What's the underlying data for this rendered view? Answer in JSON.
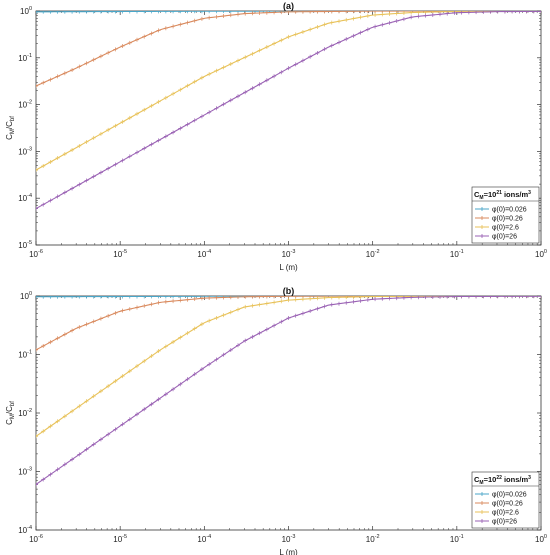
{
  "chart_data": [
    {
      "type": "line",
      "title": "(a)",
      "xlabel": "L (m)",
      "ylabel": "C_M/C_bf",
      "xscale": "log",
      "yscale": "log",
      "xlim": [
        1e-06,
        1
      ],
      "ylim": [
        1e-05,
        1
      ],
      "x_ticks": [
        1e-06,
        1e-05,
        0.0001,
        0.001,
        0.01,
        0.1,
        1
      ],
      "y_ticks": [
        1e-05,
        0.0001,
        0.001,
        0.01,
        0.1,
        1
      ],
      "grid": false,
      "legend_placement": "bottom-right",
      "legend_title": {
        "base": "C",
        "sub": "M",
        "mid": "=10",
        "sup": "21",
        "tail": " ions/m",
        "sup2": "3"
      },
      "series": [
        {
          "name": "φ(0)=0.026",
          "color": "#4aa6c8",
          "marker": "+",
          "points": [
            [
              1e-06,
              0.96
            ],
            [
              0.0001,
              0.99
            ],
            [
              0.01,
              1.0
            ],
            [
              1,
              1.0
            ]
          ]
        },
        {
          "name": "φ(0)=0.26",
          "color": "#d98a5e",
          "marker": "+",
          "points": [
            [
              1e-06,
              0.025
            ],
            [
              3e-06,
              0.06
            ],
            [
              1e-05,
              0.17
            ],
            [
              3e-05,
              0.4
            ],
            [
              0.0001,
              0.7
            ],
            [
              0.0003,
              0.88
            ],
            [
              0.001,
              0.96
            ],
            [
              0.01,
              0.995
            ],
            [
              0.1,
              1.0
            ],
            [
              1,
              1.0
            ]
          ]
        },
        {
          "name": "φ(0)=2.6",
          "color": "#e8c25a",
          "marker": "+",
          "points": [
            [
              1e-06,
              0.0004
            ],
            [
              1e-05,
              0.004
            ],
            [
              0.0001,
              0.04
            ],
            [
              0.001,
              0.28
            ],
            [
              0.003,
              0.55
            ],
            [
              0.01,
              0.82
            ],
            [
              0.03,
              0.93
            ],
            [
              0.1,
              0.98
            ],
            [
              1,
              1.0
            ]
          ]
        },
        {
          "name": "φ(0)=26",
          "color": "#9a62b4",
          "marker": "+",
          "points": [
            [
              1e-06,
              6e-05
            ],
            [
              1e-05,
              0.0006
            ],
            [
              0.0001,
              0.006
            ],
            [
              0.001,
              0.06
            ],
            [
              0.003,
              0.17
            ],
            [
              0.01,
              0.45
            ],
            [
              0.03,
              0.75
            ],
            [
              0.1,
              0.92
            ],
            [
              0.3,
              0.97
            ],
            [
              1,
              0.98
            ]
          ]
        }
      ]
    },
    {
      "type": "line",
      "title": "(b)",
      "xlabel": "L (m)",
      "ylabel": "C_M/C_bf",
      "xscale": "log",
      "yscale": "log",
      "xlim": [
        1e-06,
        1
      ],
      "ylim": [
        0.0001,
        1
      ],
      "x_ticks": [
        1e-06,
        1e-05,
        0.0001,
        0.001,
        0.01,
        0.1,
        1
      ],
      "y_ticks": [
        0.0001,
        0.001,
        0.01,
        0.1,
        1
      ],
      "grid": false,
      "legend_placement": "bottom-right",
      "legend_title": {
        "base": "C",
        "sub": "M",
        "mid": "=10",
        "sup": "22",
        "tail": " ions/m",
        "sup2": "3"
      },
      "series": [
        {
          "name": "φ(0)=0.026",
          "color": "#4aa6c8",
          "marker": "+",
          "points": [
            [
              1e-06,
              0.97
            ],
            [
              0.0001,
              0.99
            ],
            [
              0.01,
              1.0
            ],
            [
              1,
              1.0
            ]
          ]
        },
        {
          "name": "φ(0)=0.26",
          "color": "#d98a5e",
          "marker": "+",
          "points": [
            [
              1e-06,
              0.12
            ],
            [
              3e-06,
              0.28
            ],
            [
              1e-05,
              0.55
            ],
            [
              3e-05,
              0.78
            ],
            [
              0.0001,
              0.92
            ],
            [
              0.0003,
              0.97
            ],
            [
              0.001,
              0.99
            ],
            [
              0.01,
              1.0
            ],
            [
              1,
              1.0
            ]
          ]
        },
        {
          "name": "φ(0)=2.6",
          "color": "#e8c25a",
          "marker": "+",
          "points": [
            [
              1e-06,
              0.004
            ],
            [
              1e-05,
              0.04
            ],
            [
              3e-05,
              0.12
            ],
            [
              0.0001,
              0.35
            ],
            [
              0.0003,
              0.65
            ],
            [
              0.001,
              0.85
            ],
            [
              0.003,
              0.94
            ],
            [
              0.01,
              0.98
            ],
            [
              1,
              1.0
            ]
          ]
        },
        {
          "name": "φ(0)=26",
          "color": "#9a62b4",
          "marker": "+",
          "points": [
            [
              1e-06,
              0.0006
            ],
            [
              1e-05,
              0.006
            ],
            [
              3e-05,
              0.018
            ],
            [
              0.0001,
              0.06
            ],
            [
              0.0003,
              0.17
            ],
            [
              0.001,
              0.42
            ],
            [
              0.003,
              0.7
            ],
            [
              0.01,
              0.88
            ],
            [
              0.03,
              0.95
            ],
            [
              0.1,
              0.98
            ],
            [
              1,
              0.99
            ]
          ]
        }
      ]
    }
  ]
}
